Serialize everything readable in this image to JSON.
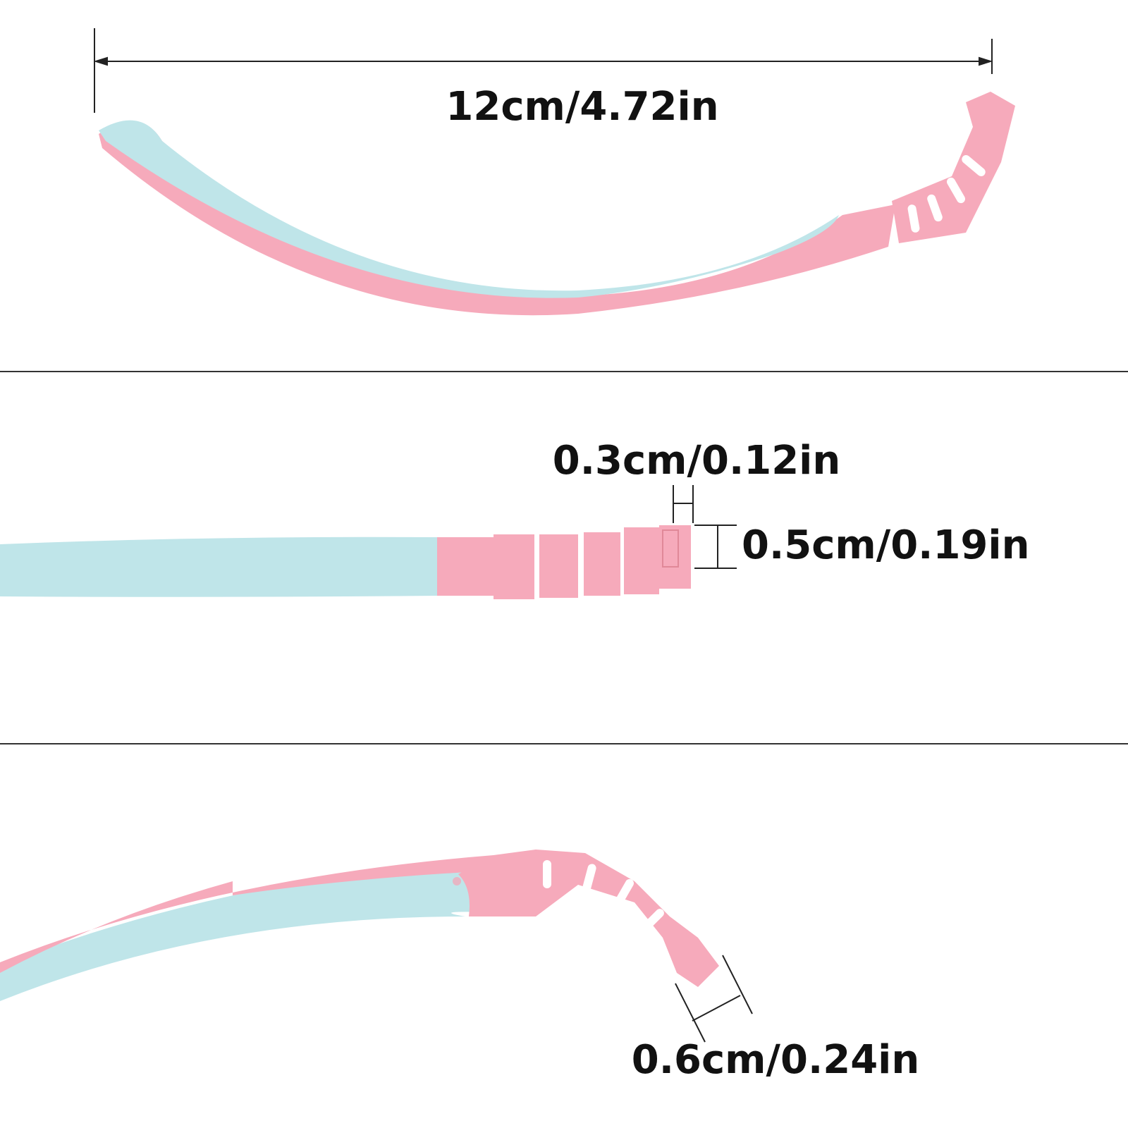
{
  "dimensions": {
    "length": "12cm/4.72in",
    "notch_width": "0.3cm/0.12in",
    "tip_height": "0.5cm/0.19in",
    "segment_width": "0.6cm/0.24in"
  },
  "colors": {
    "pink": "#f6aabb",
    "blue": "#bfe5e9",
    "line": "#222222",
    "divider": "#333333"
  }
}
